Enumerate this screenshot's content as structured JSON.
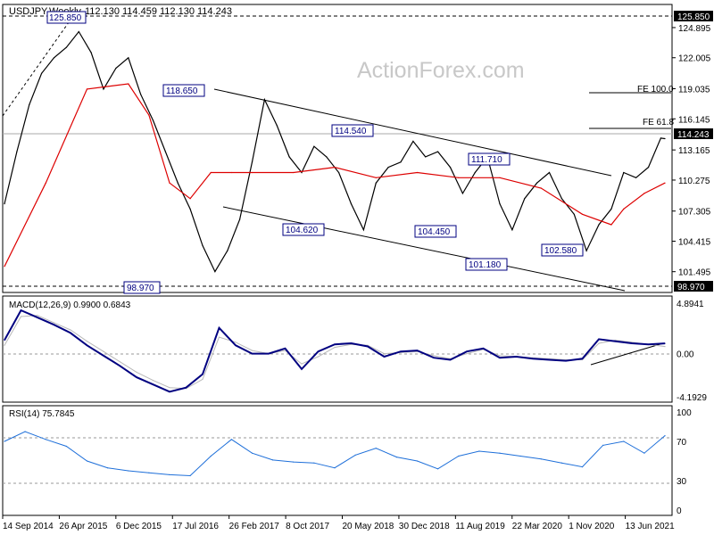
{
  "chart_data": [
    {
      "type": "line",
      "title": "USDJPY,Weekly",
      "ohlc_label": "112.130 114.459 112.130 114.243",
      "watermark": "ActionForex.com",
      "ylim": [
        100.1,
        126.0
      ],
      "y_ticks": [
        "124.895",
        "122.005",
        "119.035",
        "116.145",
        "113.165",
        "110.275",
        "107.305",
        "104.415",
        "101.495"
      ],
      "x_ticks": [
        "14 Sep 2014",
        "26 Apr 2015",
        "6 Dec 2015",
        "17 Jul 2016",
        "26 Feb 2017",
        "8 Oct 2017",
        "20 May 2018",
        "30 Dec 2018",
        "11 Aug 2019",
        "22 Mar 2020",
        "1 Nov 2020",
        "13 Jun 2021"
      ],
      "top_line": "125.850",
      "bottom_line": "98.970",
      "current_price": "114.243",
      "annotations": [
        "125.850",
        "118.650",
        "114.540",
        "111.710",
        "104.620",
        "104.450",
        "101.180",
        "102.580",
        "98.970"
      ],
      "fib_levels": [
        {
          "label": "FE 100.0",
          "value": 118.6
        },
        {
          "label": "FE 61.8",
          "value": 114.8
        }
      ],
      "series": [
        {
          "name": "Price",
          "color": "#000000",
          "x": [
            0,
            3,
            6,
            9,
            12,
            15,
            18,
            21,
            24,
            27,
            30,
            33,
            36,
            39,
            42,
            45,
            48,
            51,
            54,
            57,
            60,
            63,
            66,
            69,
            72,
            75,
            78,
            81,
            84,
            87,
            90,
            93,
            96,
            99,
            102,
            105,
            108,
            111,
            114,
            117,
            120,
            123,
            126,
            129,
            132,
            135,
            138,
            141,
            144,
            147,
            150,
            153,
            156,
            159,
            160
          ],
          "values": [
            108,
            113,
            117.5,
            120.5,
            122,
            123,
            124.5,
            122.5,
            119,
            121,
            122,
            118.5,
            116,
            113,
            110,
            107.5,
            104,
            101.5,
            103.5,
            106.5,
            112,
            118,
            115.5,
            112.5,
            111,
            113.5,
            112.5,
            111,
            108,
            105.5,
            110,
            111.5,
            112,
            114,
            112.5,
            113,
            111.5,
            109,
            111,
            112.5,
            108,
            105.5,
            108.5,
            110,
            111,
            108.5,
            107,
            103.5,
            106,
            107.5,
            111,
            110.5,
            111.5,
            114.3,
            114.243
          ]
        },
        {
          "name": "MA",
          "color": "#dd0000",
          "x": [
            0,
            10,
            20,
            30,
            35,
            40,
            45,
            50,
            55,
            60,
            70,
            80,
            90,
            100,
            110,
            120,
            130,
            140,
            147,
            150,
            155,
            160
          ],
          "values": [
            102,
            110,
            119,
            119.5,
            116.5,
            110,
            108.5,
            111,
            111,
            111,
            111,
            111.5,
            110.5,
            111,
            110.5,
            110.5,
            109.5,
            107,
            106,
            107.5,
            109,
            110
          ]
        }
      ]
    },
    {
      "type": "line",
      "title": "MACD(12,26,9) 0.9900 0.6843",
      "ylim": [
        -4.1929,
        4.8941
      ],
      "y_ticks": [
        "4.8941",
        "0.00",
        "-4.1929"
      ],
      "series": [
        {
          "name": "MACD",
          "color": "#000080",
          "x": [
            0,
            4,
            8,
            12,
            16,
            20,
            24,
            28,
            32,
            36,
            40,
            44,
            48,
            52,
            56,
            60,
            64,
            68,
            72,
            76,
            80,
            84,
            88,
            92,
            96,
            100,
            104,
            108,
            112,
            116,
            120,
            124,
            128,
            132,
            136,
            140,
            144,
            148,
            152,
            156,
            160
          ],
          "values": [
            1.3,
            4.2,
            3.5,
            2.8,
            2.0,
            0.8,
            -0.2,
            -1.2,
            -2.3,
            -3.0,
            -3.7,
            -3.3,
            -2.0,
            2.5,
            0.8,
            0.0,
            0.0,
            0.5,
            -1.5,
            0.2,
            0.9,
            1.0,
            0.7,
            -0.3,
            0.2,
            0.3,
            -0.4,
            -0.6,
            0.2,
            0.5,
            -0.4,
            -0.3,
            -0.5,
            -0.6,
            -0.7,
            -0.5,
            1.4,
            1.2,
            1.0,
            0.9,
            0.99
          ]
        },
        {
          "name": "Signal",
          "color": "#b8b8b8",
          "x": [
            0,
            4,
            8,
            12,
            16,
            20,
            24,
            28,
            32,
            36,
            40,
            44,
            48,
            52,
            56,
            60,
            64,
            68,
            72,
            76,
            80,
            84,
            88,
            92,
            96,
            100,
            104,
            108,
            112,
            116,
            120,
            124,
            128,
            132,
            136,
            140,
            144,
            148,
            152,
            156,
            160
          ],
          "values": [
            0.8,
            3.6,
            3.7,
            3.0,
            2.3,
            1.2,
            0.2,
            -0.8,
            -1.8,
            -2.6,
            -3.3,
            -3.4,
            -2.5,
            1.6,
            1.1,
            0.3,
            0.0,
            0.3,
            -1.0,
            -0.3,
            0.6,
            0.9,
            0.8,
            0.0,
            0.1,
            0.2,
            -0.2,
            -0.5,
            0.0,
            0.4,
            -0.2,
            -0.3,
            -0.4,
            -0.5,
            -0.6,
            -0.6,
            1.0,
            1.3,
            1.1,
            0.9,
            0.6843
          ]
        }
      ]
    },
    {
      "type": "line",
      "title": "RSI(14) 75.7845",
      "ylim": [
        0,
        100
      ],
      "y_ticks": [
        "100",
        "70",
        "30",
        "0"
      ],
      "series": [
        {
          "name": "RSI",
          "color": "#1e6fd9",
          "x": [
            0,
            5,
            10,
            15,
            20,
            25,
            30,
            35,
            40,
            45,
            50,
            55,
            60,
            65,
            70,
            75,
            80,
            85,
            90,
            95,
            100,
            105,
            110,
            115,
            120,
            125,
            130,
            135,
            140,
            145,
            150,
            155,
            160
          ],
          "values": [
            70,
            80,
            72,
            65,
            50,
            43,
            40,
            38,
            36,
            35,
            55,
            72,
            58,
            51,
            49,
            48,
            43,
            56,
            63,
            54,
            50,
            42,
            55,
            60,
            58,
            55,
            52,
            48,
            44,
            66,
            70,
            58,
            75.7845
          ]
        }
      ]
    }
  ]
}
